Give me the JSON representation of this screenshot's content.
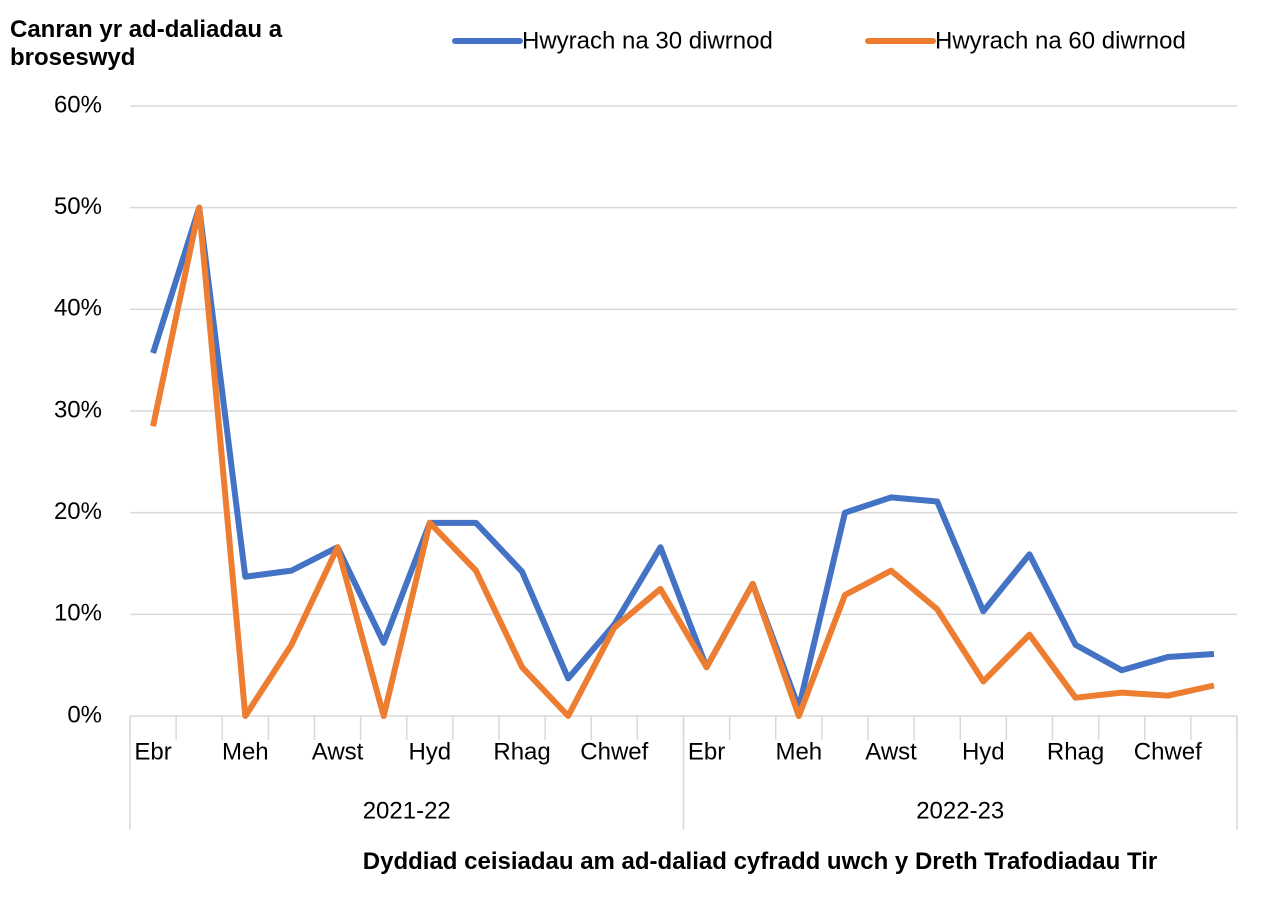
{
  "chart_data": {
    "type": "line",
    "y_label": "Canran yr ad-daliadau a broseswyd",
    "x_label": "Dyddiad ceisiadau am ad-daliad cyfradd uwch y Dreth Trafodiadau Tir",
    "categories": [
      "Ebr",
      null,
      "Meh",
      null,
      "Awst",
      null,
      "Hyd",
      null,
      "Rhag",
      null,
      "Chwef",
      null,
      "Ebr",
      null,
      "Meh",
      null,
      "Awst",
      null,
      "Hyd",
      null,
      "Rhag",
      null,
      "Chwef",
      null
    ],
    "groups": [
      {
        "label": "2021-22",
        "span": 12
      },
      {
        "label": "2022-23",
        "span": 12
      }
    ],
    "series": [
      {
        "name": "Hwyrach na 30 diwrnod",
        "color": "#4472c4",
        "values": [
          35.7,
          50,
          13.7,
          14.3,
          16.6,
          7.2,
          19.0,
          19.0,
          14.2,
          3.7,
          9.0,
          16.6,
          4.8,
          13.0,
          0.8,
          20.0,
          21.5,
          21.1,
          10.3,
          15.9,
          7.0,
          4.5,
          5.8,
          6.1
        ]
      },
      {
        "name": "Hwyrach na 60 diwrnod",
        "color": "#ed7d31",
        "values": [
          28.5,
          50,
          0,
          7.0,
          16.6,
          0,
          19.0,
          14.3,
          4.8,
          0,
          8.7,
          12.5,
          4.8,
          13.0,
          0,
          11.9,
          14.3,
          10.5,
          3.4,
          8.0,
          1.8,
          2.3,
          2.0,
          3.0
        ]
      }
    ],
    "ylim": [
      0,
      60
    ],
    "yticks": [
      {
        "value": 0,
        "label": "0%"
      },
      {
        "value": 10,
        "label": "10%"
      },
      {
        "value": 20,
        "label": "20%"
      },
      {
        "value": 30,
        "label": "30%"
      },
      {
        "value": 40,
        "label": "40%"
      },
      {
        "value": 50,
        "label": "50%"
      },
      {
        "value": 60,
        "label": "60%"
      }
    ],
    "grid": true,
    "legend": "top"
  }
}
